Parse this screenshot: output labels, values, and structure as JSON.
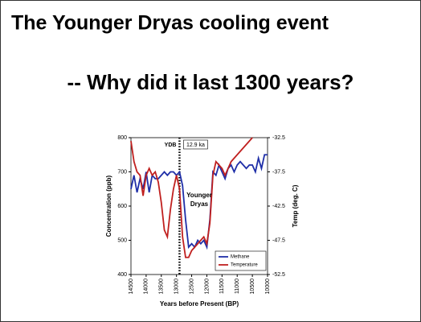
{
  "slide": {
    "title": "The Younger Dryas cooling event",
    "subtitle": "-- Why did it last 1300 years?"
  },
  "chart_data": {
    "type": "line",
    "x_label": "Years before Present (BP)",
    "y_label": "Concentration (ppb)",
    "y2_label": "Temp (deg. C)",
    "annotations": [
      "YDB",
      "12.9 ka",
      "Younger",
      "Dryas"
    ],
    "vline": 12900,
    "xlim": [
      14500,
      10000
    ],
    "xticks": [
      14500,
      14000,
      13500,
      13000,
      12500,
      12000,
      11500,
      11000,
      10500,
      10000
    ],
    "ylim": [
      400,
      800
    ],
    "yticks": [
      400,
      500,
      600,
      700,
      800
    ],
    "y2lim": [
      -52.5,
      -32.5
    ],
    "y2ticks": [
      -52.5,
      -47.5,
      -42.5,
      -37.5,
      -32.5
    ],
    "legend": "lower right",
    "series": [
      {
        "name": "Methane",
        "color": "#1f2fa8",
        "axis": "y",
        "x": [
          14500,
          14400,
          14300,
          14200,
          14100,
          14000,
          13900,
          13800,
          13700,
          13600,
          13500,
          13400,
          13300,
          13200,
          13100,
          13000,
          12900,
          12800,
          12700,
          12600,
          12500,
          12400,
          12300,
          12200,
          12100,
          12000,
          11900,
          11800,
          11700,
          11600,
          11500,
          11400,
          11300,
          11200,
          11100,
          11000,
          10900,
          10800,
          10700,
          10600,
          10500,
          10400,
          10300,
          10200,
          10100,
          10000
        ],
        "values": [
          650,
          690,
          640,
          680,
          650,
          700,
          640,
          690,
          680,
          680,
          690,
          700,
          690,
          700,
          700,
          690,
          700,
          660,
          560,
          480,
          490,
          480,
          500,
          490,
          500,
          480,
          560,
          700,
          690,
          720,
          700,
          680,
          710,
          720,
          700,
          720,
          730,
          720,
          710,
          720,
          720,
          700,
          740,
          710,
          750,
          750
        ]
      },
      {
        "name": "Temperature",
        "color": "#c0201f",
        "axis": "y2",
        "x": [
          14500,
          14400,
          14300,
          14200,
          14100,
          14000,
          13900,
          13800,
          13700,
          13600,
          13500,
          13400,
          13300,
          13200,
          13100,
          13000,
          12900,
          12800,
          12700,
          12600,
          12500,
          12400,
          12300,
          12200,
          12100,
          12000,
          11900,
          11800,
          11700,
          11600,
          11500,
          11400,
          11300,
          11200,
          11100,
          11000,
          10900,
          10800,
          10700,
          10600,
          10500
        ],
        "values": [
          -33,
          -36,
          -37.5,
          -38,
          -41,
          -38,
          -37,
          -38,
          -37.5,
          -39,
          -42,
          -46,
          -47,
          -43,
          -40,
          -38,
          -40,
          -47,
          -50,
          -50,
          -49,
          -48.5,
          -48,
          -47.5,
          -47,
          -48,
          -45,
          -38,
          -36,
          -36.5,
          -37,
          -38,
          -37,
          -36,
          -35.5,
          -35,
          -34.5,
          -34,
          -33.5,
          -33,
          -32.5
        ]
      }
    ]
  }
}
